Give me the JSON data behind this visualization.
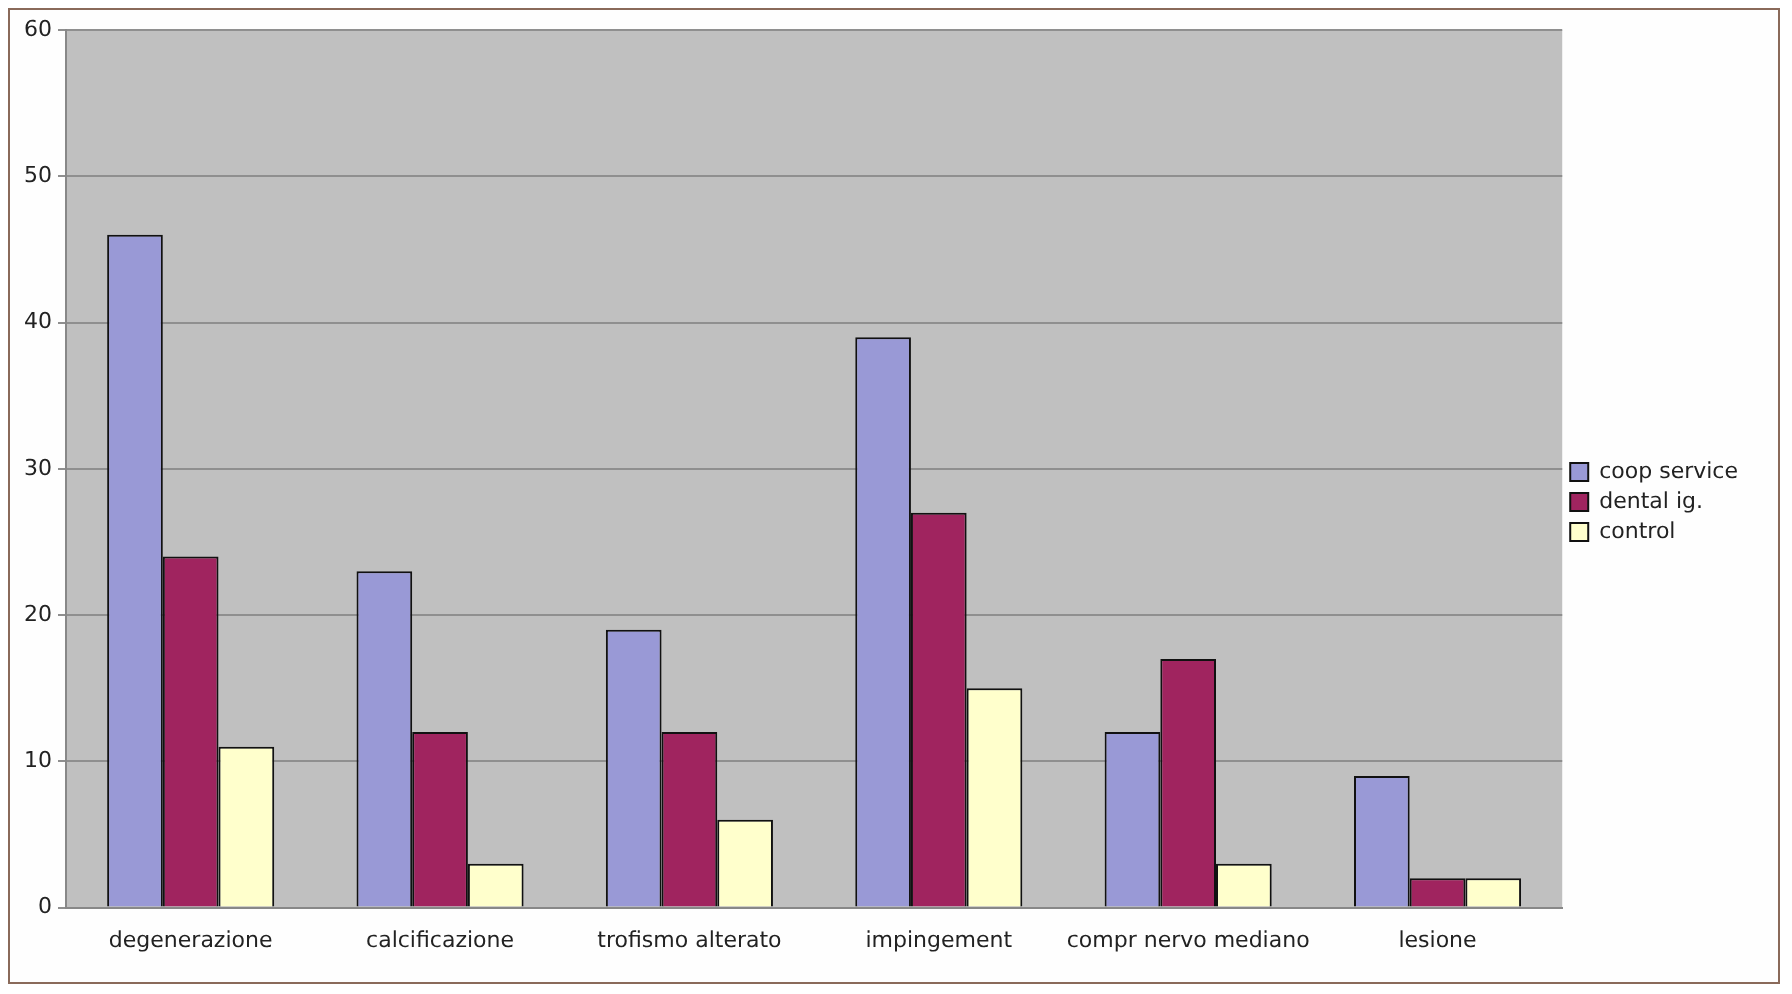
{
  "chart_data": {
    "type": "bar",
    "categories": [
      "degenerazione",
      "calcificazione",
      "trofismo alterato",
      "impingement",
      "compr nervo mediano",
      "lesione"
    ],
    "series": [
      {
        "name": "coop service",
        "color": "#9999d6",
        "values": [
          46,
          23,
          19,
          39,
          12,
          9
        ]
      },
      {
        "name": "dental ig.",
        "color": "#a0245f",
        "values": [
          24,
          12,
          12,
          27,
          17,
          2
        ]
      },
      {
        "name": "control",
        "color": "#ffffcc",
        "values": [
          11,
          3,
          6,
          15,
          3,
          2
        ]
      }
    ],
    "ylim": [
      0,
      60
    ],
    "yticks": [
      0,
      10,
      20,
      30,
      40,
      50,
      60
    ],
    "grid": "y",
    "legend": "right"
  }
}
